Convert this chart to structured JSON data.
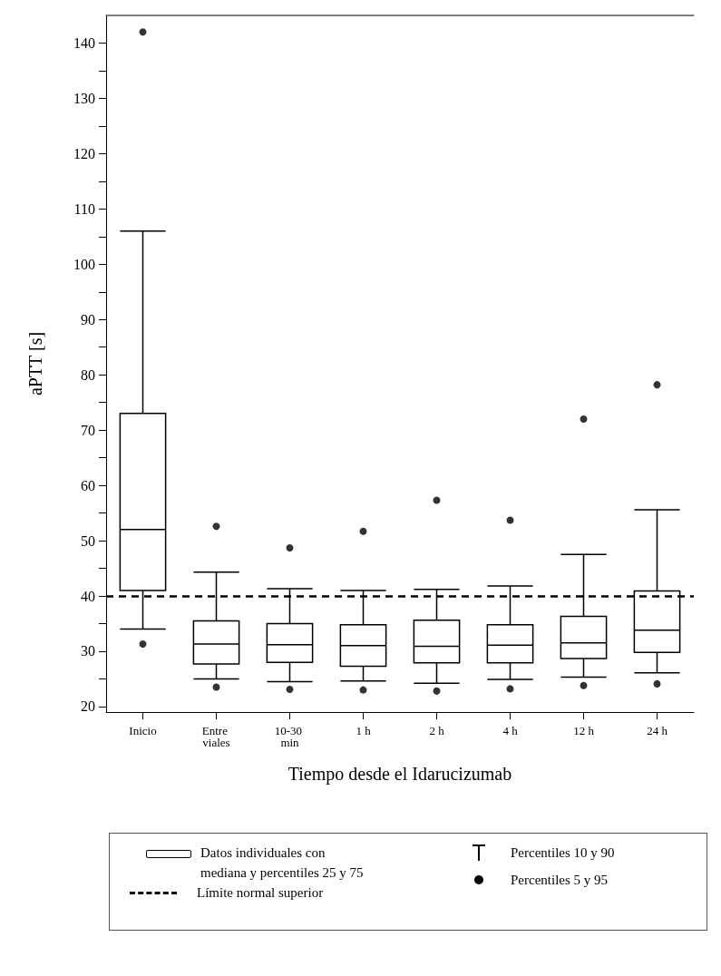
{
  "chart_data": {
    "type": "box",
    "xlabel": "Tiempo desde el Idarucizumab",
    "ylabel": "aPTT [s]",
    "categories": [
      "Inicio",
      "Entre viales",
      "10-30 min",
      "1 h",
      "2 h",
      "4 h",
      "12 h",
      "24 h"
    ],
    "ylim": [
      19,
      145
    ],
    "yticks": [
      20,
      {
        "value": 25,
        "label": null
      },
      30,
      {
        "value": 35,
        "label": null
      },
      40,
      {
        "value": 45,
        "label": null
      },
      50,
      {
        "value": 55,
        "label": null
      },
      60,
      {
        "value": 65,
        "label": null
      },
      70,
      {
        "value": 75,
        "label": null
      },
      80,
      {
        "value": 85,
        "label": null
      },
      90,
      {
        "value": 95,
        "label": null
      },
      100,
      {
        "value": 105,
        "label": null
      },
      110,
      {
        "value": 115,
        "label": null
      },
      120,
      {
        "value": 125,
        "label": null
      },
      130,
      {
        "value": 135,
        "label": null
      },
      140
    ],
    "series": [
      {
        "name": "Datos individuales con mediana y percentiles 25 y 75",
        "color": "#000000",
        "boxes": [
          {
            "low": 34,
            "q1": 41,
            "median": 52,
            "q3": 73,
            "high": 106
          },
          {
            "low": 25,
            "q1": 27.7,
            "median": 31.3,
            "q3": 35.5,
            "high": 44.3
          },
          {
            "low": 24.5,
            "q1": 28,
            "median": 31.2,
            "q3": 35,
            "high": 41.3
          },
          {
            "low": 24.6,
            "q1": 27.3,
            "median": 31,
            "q3": 34.8,
            "high": 41
          },
          {
            "low": 24.2,
            "q1": 27.9,
            "median": 30.9,
            "q3": 35.6,
            "high": 41.2
          },
          {
            "low": 24.9,
            "q1": 27.9,
            "median": 31.1,
            "q3": 34.8,
            "high": 41.8
          },
          {
            "low": 25.3,
            "q1": 28.7,
            "median": 31.5,
            "q3": 36.3,
            "high": 47.5
          },
          {
            "low": 26.1,
            "q1": 29.8,
            "median": 33.8,
            "q3": 40.9,
            "high": 55.6
          }
        ]
      },
      {
        "name": "Percentiles 5 y 95",
        "type": "scatter",
        "color": "#000000",
        "marker": "circle",
        "x": [
          "Inicio",
          "Inicio",
          "Entre viales",
          "Entre viales",
          "10-30 min",
          "10-30 min",
          "1 h",
          "1 h",
          "2 h",
          "2 h",
          "4 h",
          "4 h",
          "12 h",
          "12 h",
          "24 h",
          "24 h"
        ],
        "values": [
          31.3,
          142,
          23.5,
          52.6,
          23.1,
          48.7,
          23,
          51.7,
          22.8,
          57.3,
          23.2,
          53.7,
          23.8,
          72,
          24.1,
          78.2
        ]
      }
    ],
    "ref_lines": [
      {
        "axis": "y",
        "value": 40,
        "label": "Límite normal superior",
        "line_style": "dashed",
        "color": "#000000"
      }
    ],
    "annotations": [
      "Percentiles 10 y 90"
    ],
    "legend": "bottom",
    "grid": false
  }
}
